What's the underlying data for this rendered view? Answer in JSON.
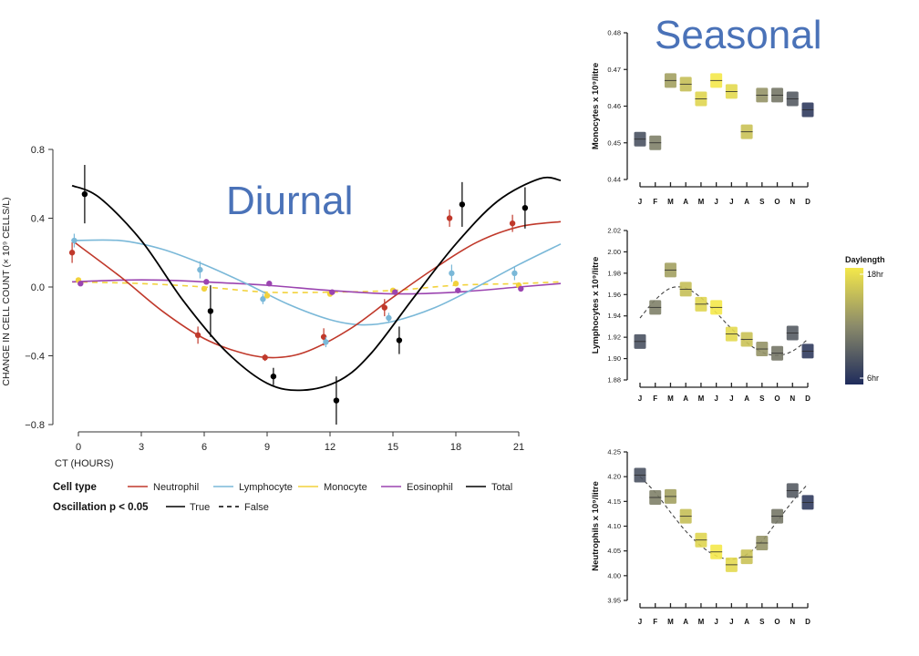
{
  "titles": {
    "diurnal": "Diurnal",
    "seasonal": "Seasonal"
  },
  "legend": {
    "cell_type_label": "Cell type",
    "cell_types": [
      {
        "name": "Neutrophil",
        "color": "#c0392b"
      },
      {
        "name": "Lymphocyte",
        "color": "#7ab8d8"
      },
      {
        "name": "Monocyte",
        "color": "#f2d23c"
      },
      {
        "name": "Eosinophil",
        "color": "#9b44b0"
      },
      {
        "name": "Total",
        "color": "#000000"
      }
    ],
    "osc_label": "Oscillation p < 0.05",
    "osc_true": "True",
    "osc_false": "False",
    "daylength_title": "Daylength",
    "daylength_high": "18hr",
    "daylength_low": "6hr",
    "daylength_colors": [
      "#f4e84a",
      "#8a8a6a",
      "#1f2c5c"
    ]
  },
  "chart_data": [
    {
      "type": "line",
      "xlabel": "CT (HOURS)",
      "ylabel": "CHANGE IN CELL COUNT (× 10⁹ CELLS/L)",
      "xticks": [
        "0",
        "3",
        "6",
        "9",
        "12",
        "15",
        "18",
        "21"
      ],
      "yticks": [
        "0.8",
        "0.4",
        "0.0",
        "−0.4",
        "−0.8"
      ],
      "xlim": [
        -1,
        23
      ],
      "ylim": [
        -0.8,
        0.8
      ],
      "series": [
        {
          "name": "Neutrophil",
          "color": "#c0392b",
          "significant": true,
          "points": [
            [
              -0.3,
              0.2,
              0.06
            ],
            [
              5.7,
              -0.28,
              0.05
            ],
            [
              8.9,
              -0.41,
              0.02
            ],
            [
              11.7,
              -0.29,
              0.05
            ],
            [
              14.6,
              -0.12,
              0.05
            ],
            [
              17.7,
              0.4,
              0.05
            ],
            [
              20.7,
              0.37,
              0.05
            ]
          ],
          "curve": [
            [
              -0.3,
              0.27
            ],
            [
              2,
              0.06
            ],
            [
              4,
              -0.14
            ],
            [
              6,
              -0.3
            ],
            [
              8,
              -0.39
            ],
            [
              9.5,
              -0.41
            ],
            [
              11,
              -0.37
            ],
            [
              13,
              -0.24
            ],
            [
              15,
              -0.06
            ],
            [
              17,
              0.11
            ],
            [
              19,
              0.26
            ],
            [
              21,
              0.35
            ],
            [
              23,
              0.38
            ]
          ]
        },
        {
          "name": "Lymphocyte",
          "color": "#7ab8d8",
          "significant": true,
          "points": [
            [
              -0.2,
              0.27,
              0.04
            ],
            [
              5.8,
              0.1,
              0.05
            ],
            [
              8.8,
              -0.07,
              0.03
            ],
            [
              11.8,
              -0.32,
              0.03
            ],
            [
              14.8,
              -0.18,
              0.03
            ],
            [
              17.8,
              0.08,
              0.05
            ],
            [
              20.8,
              0.08,
              0.04
            ]
          ],
          "curve": [
            [
              -0.3,
              0.27
            ],
            [
              2,
              0.27
            ],
            [
              4,
              0.22
            ],
            [
              6,
              0.13
            ],
            [
              8,
              0.02
            ],
            [
              10,
              -0.1
            ],
            [
              12,
              -0.19
            ],
            [
              13.5,
              -0.22
            ],
            [
              15,
              -0.2
            ],
            [
              17,
              -0.12
            ],
            [
              19,
              0.0
            ],
            [
              21,
              0.13
            ],
            [
              23,
              0.25
            ]
          ]
        },
        {
          "name": "Monocyte",
          "color": "#f2d23c",
          "significant": false,
          "points": [
            [
              0.0,
              0.04,
              0.01
            ],
            [
              6.0,
              -0.01,
              0.01
            ],
            [
              9.0,
              -0.05,
              0.01
            ],
            [
              12.0,
              -0.04,
              0.01
            ],
            [
              15.0,
              -0.02,
              0.01
            ],
            [
              18.0,
              0.02,
              0.01
            ],
            [
              21.0,
              0.01,
              0.01
            ]
          ],
          "curve": [
            [
              -0.3,
              0.03
            ],
            [
              3,
              0.02
            ],
            [
              6,
              0.0
            ],
            [
              9,
              -0.03
            ],
            [
              12,
              -0.03
            ],
            [
              15,
              -0.02
            ],
            [
              18,
              0.01
            ],
            [
              21,
              0.02
            ],
            [
              23,
              0.03
            ]
          ]
        },
        {
          "name": "Eosinophil",
          "color": "#9b44b0",
          "significant": true,
          "points": [
            [
              0.1,
              0.02,
              0.01
            ],
            [
              6.1,
              0.03,
              0.01
            ],
            [
              9.1,
              0.02,
              0.01
            ],
            [
              12.1,
              -0.03,
              0.01
            ],
            [
              15.1,
              -0.03,
              0.01
            ],
            [
              18.1,
              -0.02,
              0.01
            ],
            [
              21.1,
              -0.01,
              0.01
            ]
          ],
          "curve": [
            [
              -0.3,
              0.03
            ],
            [
              2,
              0.04
            ],
            [
              4,
              0.04
            ],
            [
              6,
              0.03
            ],
            [
              9,
              0.01
            ],
            [
              12,
              -0.02
            ],
            [
              15,
              -0.04
            ],
            [
              18,
              -0.03
            ],
            [
              21,
              0.0
            ],
            [
              23,
              0.02
            ]
          ]
        },
        {
          "name": "Total",
          "color": "#000000",
          "significant": true,
          "points": [
            [
              0.3,
              0.54,
              0.17
            ],
            [
              6.3,
              -0.14,
              0.15
            ],
            [
              9.3,
              -0.52,
              0.05
            ],
            [
              12.3,
              -0.66,
              0.14
            ],
            [
              15.3,
              -0.31,
              0.08
            ],
            [
              18.3,
              0.48,
              0.13
            ],
            [
              21.3,
              0.46,
              0.12
            ]
          ],
          "curve": [
            [
              -0.3,
              0.59
            ],
            [
              1,
              0.52
            ],
            [
              3,
              0.27
            ],
            [
              5,
              -0.08
            ],
            [
              7,
              -0.37
            ],
            [
              9,
              -0.56
            ],
            [
              10.7,
              -0.6
            ],
            [
              12.5,
              -0.54
            ],
            [
              14,
              -0.38
            ],
            [
              16,
              -0.06
            ],
            [
              18,
              0.25
            ],
            [
              20,
              0.5
            ],
            [
              22,
              0.63
            ],
            [
              23,
              0.62
            ]
          ]
        }
      ]
    },
    {
      "type": "scatter",
      "ylabel": "Monocytes x 10⁹/litre",
      "yticks": [
        "0.48",
        "0.47",
        "0.46",
        "0.45",
        "0.44"
      ],
      "ylim": [
        0.44,
        0.48
      ],
      "months": [
        "J",
        "F",
        "M",
        "A",
        "M",
        "J",
        "J",
        "A",
        "S",
        "O",
        "N",
        "D"
      ],
      "values": [
        0.451,
        0.45,
        0.467,
        0.466,
        0.462,
        0.467,
        0.464,
        0.453,
        0.463,
        0.463,
        0.462,
        0.459
      ],
      "daylength": [
        0.2,
        0.45,
        0.62,
        0.78,
        0.9,
        1.0,
        0.92,
        0.8,
        0.55,
        0.4,
        0.25,
        0.08
      ],
      "fit": null
    },
    {
      "type": "scatter",
      "ylabel": "Lymphocytes x 10⁹/litre",
      "yticks": [
        "2.02",
        "2.00",
        "1.98",
        "1.96",
        "1.94",
        "1.92",
        "1.90",
        "1.88"
      ],
      "ylim": [
        1.88,
        2.02
      ],
      "months": [
        "J",
        "F",
        "M",
        "A",
        "M",
        "J",
        "J",
        "A",
        "S",
        "O",
        "N",
        "D"
      ],
      "values": [
        1.916,
        1.948,
        1.983,
        1.965,
        1.951,
        1.948,
        1.923,
        1.918,
        1.909,
        1.905,
        1.924,
        1.907
      ],
      "daylength": [
        0.2,
        0.45,
        0.62,
        0.78,
        0.9,
        1.0,
        0.92,
        0.8,
        0.55,
        0.4,
        0.25,
        0.08
      ],
      "fit": [
        1.938,
        1.955,
        1.966,
        1.966,
        1.957,
        1.943,
        1.928,
        1.915,
        1.906,
        1.903,
        1.907,
        1.918
      ]
    },
    {
      "type": "scatter",
      "ylabel": "Neutrophils x 10⁹/litre",
      "yticks": [
        "4.25",
        "4.20",
        "4.15",
        "4.10",
        "4.05",
        "4.00",
        "3.95"
      ],
      "ylim": [
        3.95,
        4.25
      ],
      "months": [
        "J",
        "F",
        "M",
        "A",
        "M",
        "J",
        "J",
        "A",
        "S",
        "O",
        "N",
        "D"
      ],
      "values": [
        4.203,
        4.158,
        4.16,
        4.12,
        4.072,
        4.048,
        4.022,
        4.038,
        4.066,
        4.12,
        4.172,
        4.148
      ],
      "daylength": [
        0.2,
        0.45,
        0.62,
        0.78,
        0.9,
        1.0,
        0.92,
        0.8,
        0.55,
        0.4,
        0.25,
        0.08
      ],
      "fit": [
        4.2,
        4.168,
        4.128,
        4.09,
        4.06,
        4.04,
        4.033,
        4.043,
        4.07,
        4.11,
        4.15,
        4.185
      ]
    }
  ]
}
